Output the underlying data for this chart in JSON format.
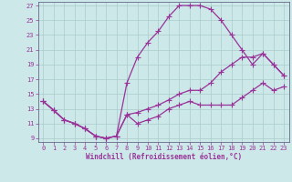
{
  "xlabel": "Windchill (Refroidissement éolien,°C)",
  "bg_color": "#cce8e8",
  "line_color": "#993399",
  "grid_color": "#aacccc",
  "xlim": [
    -0.5,
    23.5
  ],
  "ylim": [
    8.5,
    27.5
  ],
  "yticks": [
    9,
    11,
    13,
    15,
    17,
    19,
    21,
    23,
    25,
    27
  ],
  "xticks": [
    0,
    1,
    2,
    3,
    4,
    5,
    6,
    7,
    8,
    9,
    10,
    11,
    12,
    13,
    14,
    15,
    16,
    17,
    18,
    19,
    20,
    21,
    22,
    23
  ],
  "line1_x": [
    0,
    1,
    2,
    3,
    4,
    5,
    6,
    7,
    8,
    9,
    10,
    11,
    12,
    13,
    14,
    15,
    16,
    17,
    18,
    19,
    20,
    21,
    22,
    23
  ],
  "line1_y": [
    14.0,
    12.8,
    11.5,
    11.0,
    10.3,
    9.3,
    9.0,
    9.3,
    12.2,
    12.5,
    13.0,
    13.5,
    14.2,
    15.0,
    15.5,
    15.5,
    16.5,
    18.0,
    19.0,
    20.0,
    20.0,
    20.5,
    19.0,
    17.5
  ],
  "line2_x": [
    0,
    1,
    2,
    3,
    4,
    5,
    6,
    7,
    8,
    9,
    10,
    11,
    12,
    13,
    14,
    15,
    16,
    17,
    18,
    19,
    20,
    21,
    22,
    23
  ],
  "line2_y": [
    14.0,
    12.8,
    11.5,
    11.0,
    10.3,
    9.3,
    9.0,
    9.3,
    16.5,
    20.0,
    22.0,
    23.5,
    25.5,
    27.0,
    27.0,
    27.0,
    26.5,
    25.0,
    23.0,
    21.0,
    19.0,
    20.5,
    19.0,
    17.5
  ],
  "line3_x": [
    0,
    1,
    2,
    3,
    4,
    5,
    6,
    7,
    8,
    9,
    10,
    11,
    12,
    13,
    14,
    15,
    16,
    17,
    18,
    19,
    20,
    21,
    22,
    23
  ],
  "line3_y": [
    14.0,
    12.8,
    11.5,
    11.0,
    10.3,
    9.3,
    9.0,
    9.3,
    12.2,
    11.0,
    11.5,
    12.0,
    13.0,
    13.5,
    14.0,
    13.5,
    13.5,
    13.5,
    13.5,
    14.5,
    15.5,
    16.5,
    15.5,
    16.0
  ]
}
